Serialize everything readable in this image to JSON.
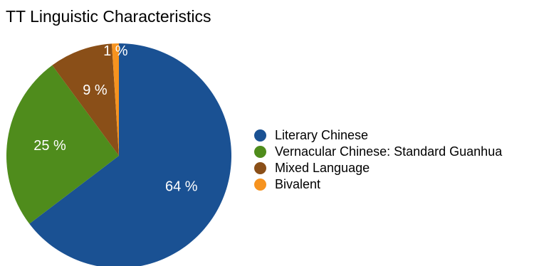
{
  "chart_data": {
    "type": "pie",
    "title": "TT Linguistic Characteristics",
    "categories": [
      "Literary Chinese",
      "Vernacular Chinese: Standard Guanhua",
      "Mixed Language",
      "Bivalent"
    ],
    "values": [
      64,
      25,
      9,
      1
    ],
    "value_labels": [
      "64 %",
      "25 %",
      "9 %",
      "1 %"
    ],
    "colors": [
      "#1a5193",
      "#4f8c1c",
      "#8a4f18",
      "#f6931f"
    ],
    "legend": "right",
    "start": "top",
    "direction": "clockwise"
  }
}
